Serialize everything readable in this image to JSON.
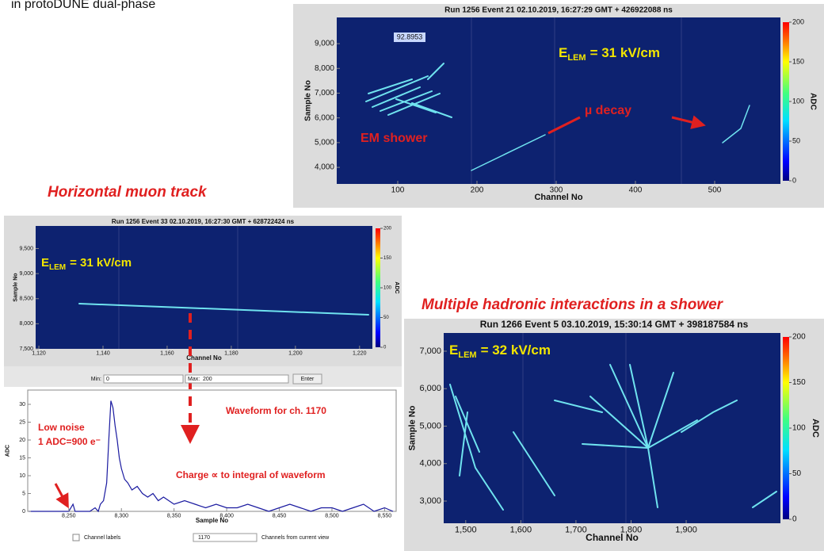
{
  "slide": {
    "heading": "in protoDUNE dual-phase",
    "caption_top": "Horizontal muon track",
    "caption_right": "Multiple hadronic interactions in a shower"
  },
  "chart_data": [
    {
      "type": "heatmap",
      "title": "Run 1256 Event 21 02.10.2019, 16:27:29 GMT + 426922088 ns",
      "x_label": "Channel No",
      "y_label": "Sample No",
      "xlim": [
        23,
        583
      ],
      "xticks": [
        100,
        200,
        300,
        400,
        500
      ],
      "ylim": [
        3330,
        10060
      ],
      "yticks": [
        {
          "value": 4000,
          "label": "4,000"
        },
        {
          "value": 5000,
          "label": "5,000"
        },
        {
          "value": 6000,
          "label": "6,000"
        },
        {
          "value": 7000,
          "label": "7,000"
        },
        {
          "value": 8000,
          "label": "8,000"
        },
        {
          "value": 9000,
          "label": "9,000"
        }
      ],
      "colorbar": {
        "label": "ADC",
        "lim": [
          0,
          200
        ],
        "ticks": [
          0,
          50,
          100,
          150,
          200
        ]
      },
      "annotations": {
        "cursor": "92.8953",
        "field": {
          "symbol": "E",
          "subscript": "LEM",
          "text": "= 31 kV/cm"
        },
        "decay": "µ decay",
        "shower": "EM shower"
      }
    },
    {
      "type": "heatmap",
      "title": "Run 1256 Event 33 02.10.2019, 16:27:30 GMT + 628722424 ns",
      "x_label": "Channel No",
      "y_label": "Sample No",
      "xlim": [
        1119,
        1224
      ],
      "xticks": [
        {
          "value": 1120,
          "label": "1,120"
        },
        {
          "value": 1140,
          "label": "1,140"
        },
        {
          "value": 1160,
          "label": "1,160"
        },
        {
          "value": 1180,
          "label": "1,180"
        },
        {
          "value": 1200,
          "label": "1,200"
        },
        {
          "value": 1220,
          "label": "1,220"
        }
      ],
      "ylim": [
        7500,
        9950
      ],
      "yticks": [
        {
          "value": 7500,
          "label": "7,500"
        },
        {
          "value": 8000,
          "label": "8,000"
        },
        {
          "value": 8500,
          "label": "8,500"
        },
        {
          "value": 9000,
          "label": "9,000"
        },
        {
          "value": 9500,
          "label": "9,500"
        }
      ],
      "colorbar": {
        "label": "ADC",
        "lim": [
          0,
          200
        ],
        "ticks": [
          0,
          50,
          100,
          150,
          200
        ]
      },
      "annotations": {
        "field": {
          "symbol": "E",
          "subscript": "LEM",
          "text": "= 31 kV/cm"
        }
      },
      "controls": {
        "min_label": "Min:",
        "min_value": 0,
        "max_label": "Max:",
        "max_value": 200,
        "button": "Enter"
      }
    },
    {
      "type": "line",
      "x_label": "Sample No",
      "y_label": "ADC",
      "color": "#1a1aa0",
      "x": [
        8212,
        8220,
        8230,
        8240,
        8250,
        8254,
        8256,
        8260,
        8270,
        8275,
        8278,
        8280,
        8283,
        8286,
        8288,
        8290,
        8292,
        8294,
        8296,
        8298,
        8300,
        8303,
        8306,
        8310,
        8315,
        8320,
        8325,
        8330,
        8335,
        8340,
        8345,
        8350,
        8360,
        8370,
        8380,
        8390,
        8400,
        8410,
        8420,
        8430,
        8440,
        8450,
        8460,
        8470,
        8480,
        8490,
        8500,
        8510,
        8520,
        8530,
        8540,
        8550,
        8558
      ],
      "values": [
        0,
        0,
        0,
        0,
        0,
        2,
        0,
        0,
        0,
        1,
        0,
        2,
        3,
        8,
        20,
        31,
        29,
        24,
        20,
        15,
        12,
        9,
        8,
        6,
        7,
        5,
        4,
        5,
        3,
        4,
        3,
        2,
        3,
        2,
        1,
        2,
        1,
        1,
        2,
        1,
        0,
        1,
        2,
        1,
        0,
        1,
        1,
        0,
        1,
        2,
        0,
        1,
        0
      ],
      "xlim": [
        8211,
        8561
      ],
      "xticks": [
        {
          "value": 8250,
          "label": "8,250"
        },
        {
          "value": 8300,
          "label": "8,300"
        },
        {
          "value": 8350,
          "label": "8,350"
        },
        {
          "value": 8400,
          "label": "8,400"
        },
        {
          "value": 8450,
          "label": "8,450"
        },
        {
          "value": 8500,
          "label": "8,500"
        },
        {
          "value": 8550,
          "label": "8,550"
        }
      ],
      "ylim": [
        0,
        34
      ],
      "yticks": [
        0,
        5,
        10,
        15,
        20,
        25,
        30
      ],
      "annotations": {
        "waveform": "Waveform for ch. 1170",
        "noise": "Low noise",
        "gain": "1 ADC=900 e⁻",
        "charge": "Charge ∝ to integral of waveform"
      },
      "controls": {
        "checkbox": "Channel labels",
        "channel": 1170,
        "hint": "Channels from current view"
      }
    },
    {
      "type": "heatmap",
      "title": "Run 1266 Event 5 03.10.2019, 15:30:14 GMT + 398187584 ns",
      "x_label": "Channel No",
      "y_label": "Sample No",
      "xlim": [
        1460,
        2071
      ],
      "xticks": [
        {
          "value": 1500,
          "label": "1,500"
        },
        {
          "value": 1600,
          "label": "1,600"
        },
        {
          "value": 1700,
          "label": "1,700"
        },
        {
          "value": 1800,
          "label": "1,800"
        },
        {
          "value": 1900,
          "label": "1,900"
        }
      ],
      "ylim": [
        2408,
        7486
      ],
      "yticks": [
        {
          "value": 3000,
          "label": "3,000"
        },
        {
          "value": 4000,
          "label": "4,000"
        },
        {
          "value": 5000,
          "label": "5,000"
        },
        {
          "value": 6000,
          "label": "6,000"
        },
        {
          "value": 7000,
          "label": "7,000"
        }
      ],
      "colorbar": {
        "label": "ADC",
        "lim": [
          0,
          200
        ],
        "ticks": [
          0,
          50,
          100,
          150,
          200
        ]
      },
      "annotations": {
        "field": {
          "symbol": "E",
          "subscript": "LEM",
          "text": "= 32 kV/cm"
        }
      }
    }
  ]
}
